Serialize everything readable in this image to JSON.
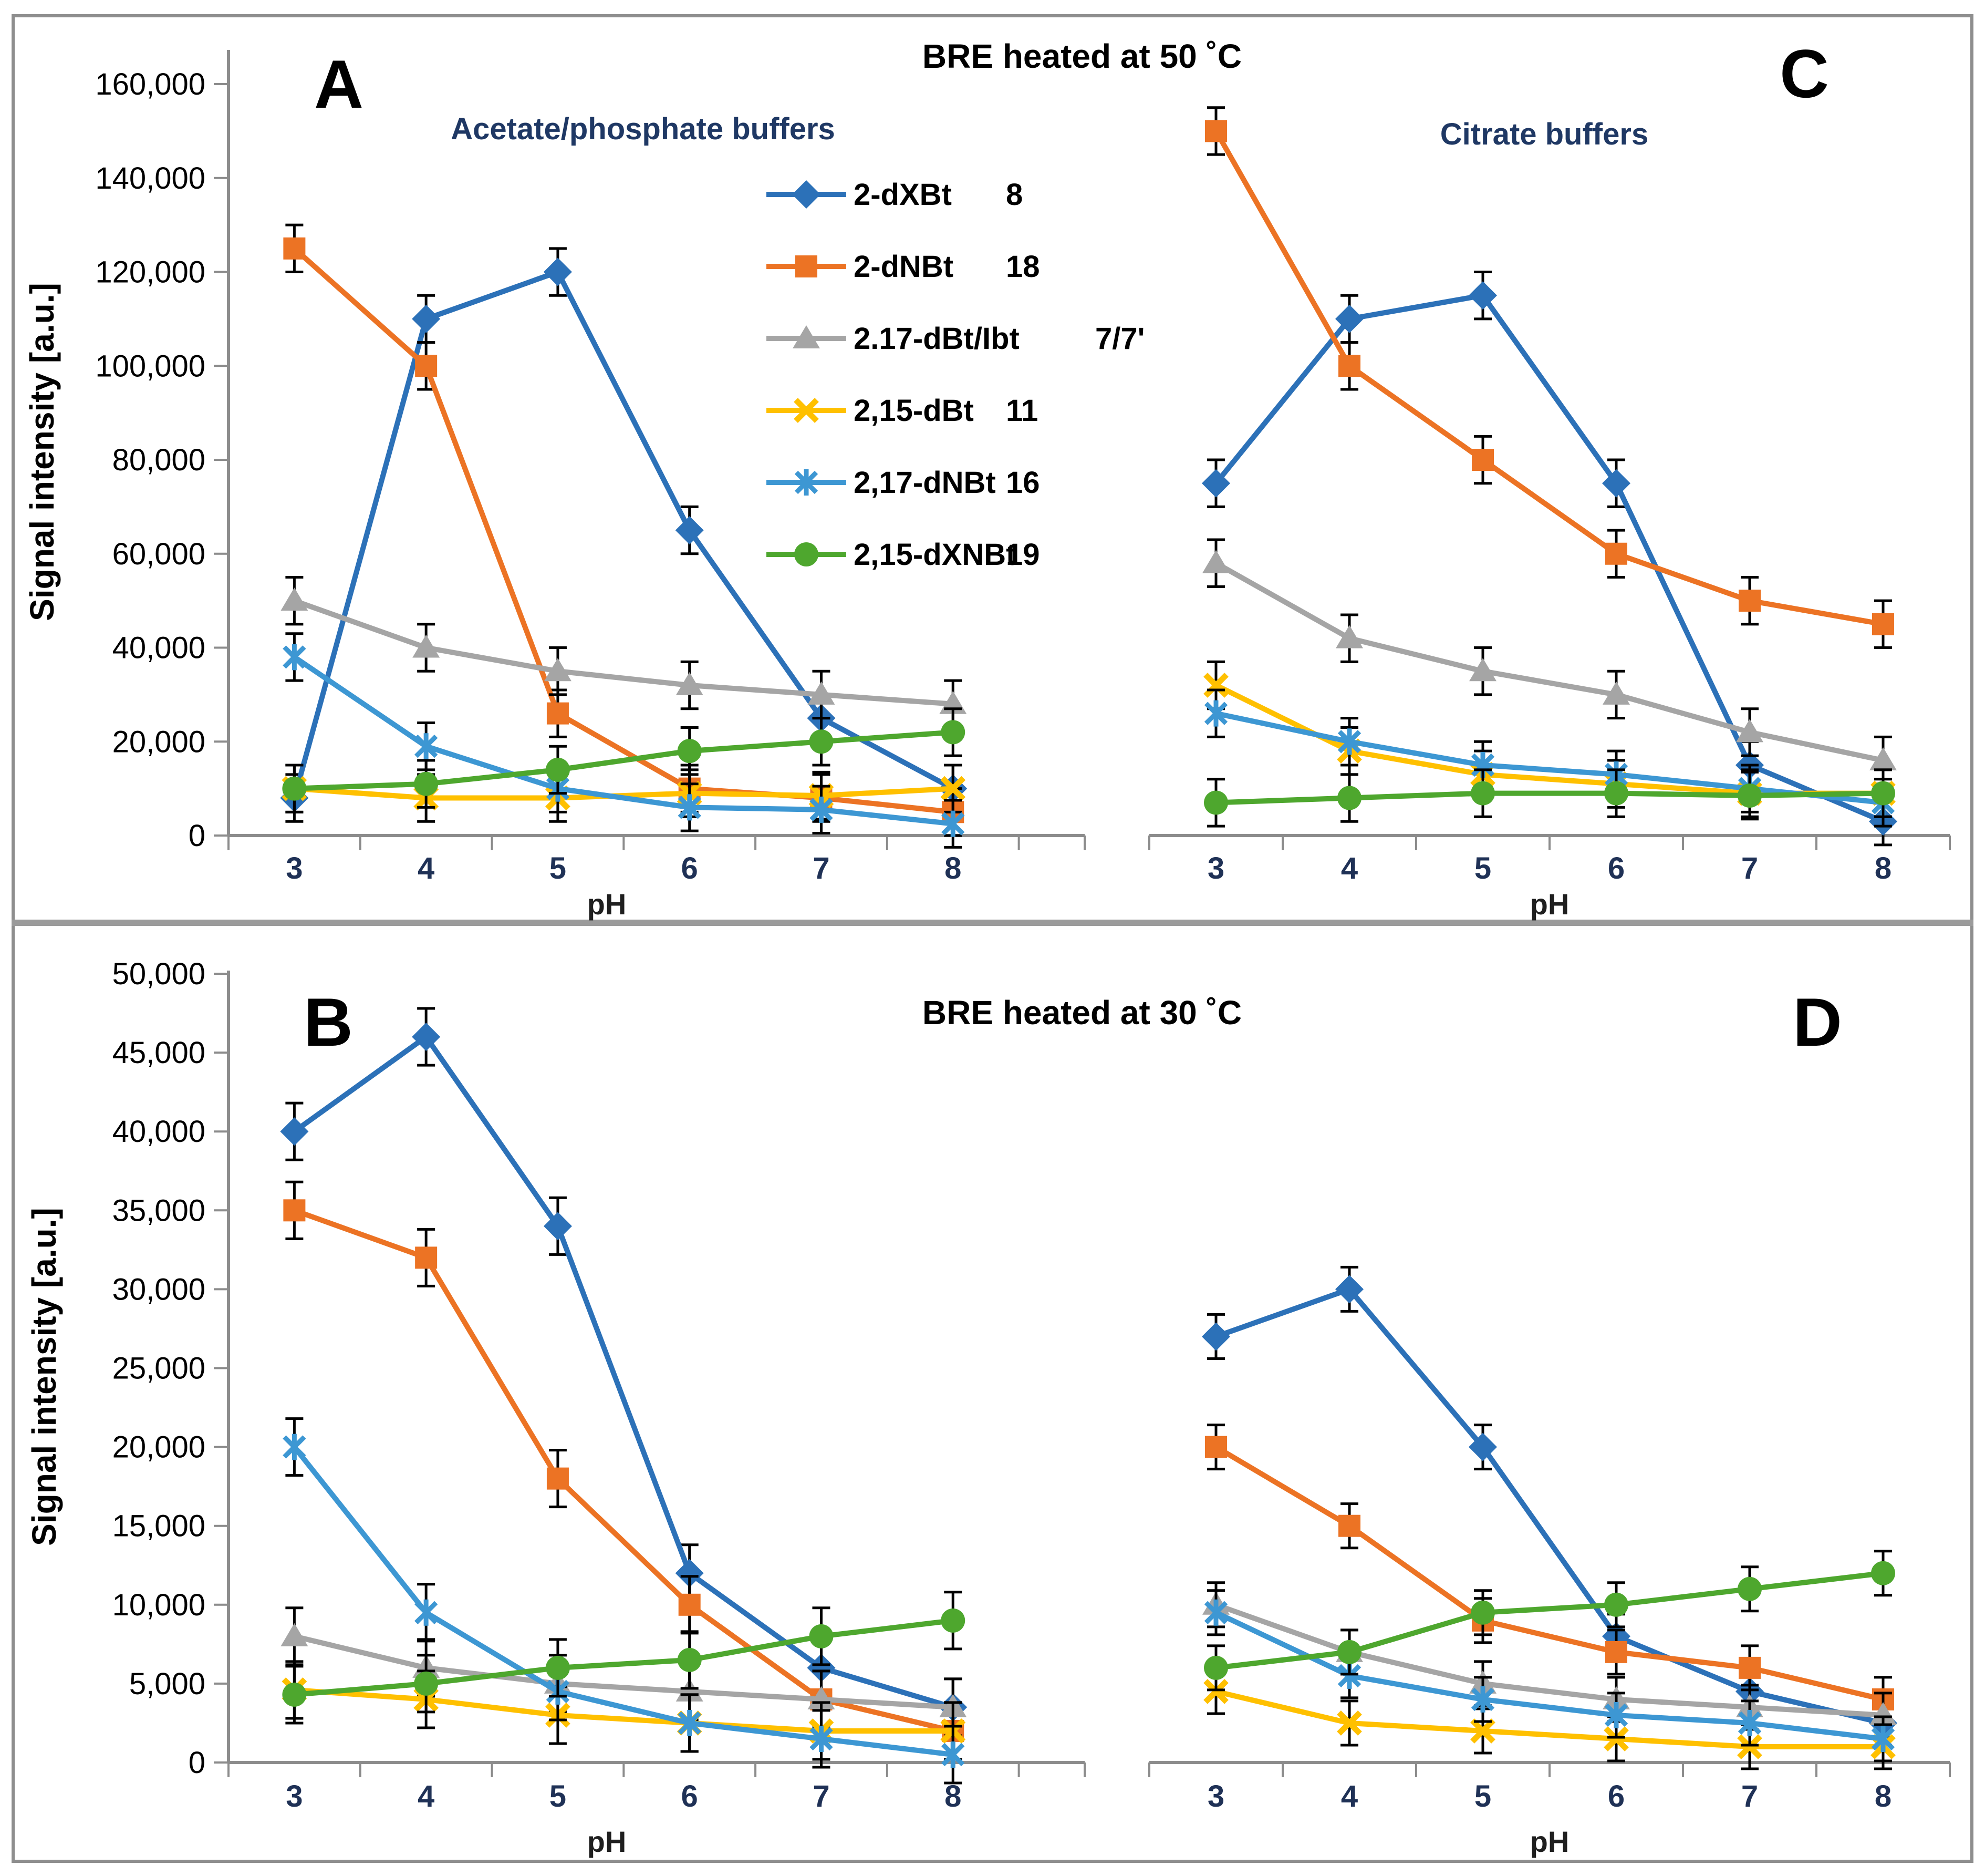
{
  "figure": {
    "sections": [
      {
        "title": "BRE heated at 50 ˚C",
        "ylabel": "Signal intensity [a.u.]"
      },
      {
        "title": "BRE heated at 30 ˚C",
        "ylabel": "Signal intensity [a.u.]"
      }
    ]
  },
  "legend": {
    "items": [
      {
        "name": "2-dXBt",
        "number": "8",
        "color": "#2C71B8",
        "marker": "diamond"
      },
      {
        "name": "2-dNBt",
        "number": "18",
        "color": "#EC7324",
        "marker": "square"
      },
      {
        "name": "2.17-dBt/Ibt",
        "number": "7/7'",
        "color": "#A5A5A5",
        "marker": "triangle"
      },
      {
        "name": "2,15-dBt",
        "number": "11",
        "color": "#FFC000",
        "marker": "x"
      },
      {
        "name": "2,17-dNBt",
        "number": "16",
        "color": "#3D97D3",
        "marker": "asterisk"
      },
      {
        "name": "2,15-dXNBt",
        "number": "19",
        "color": "#4EA72E",
        "marker": "circle"
      }
    ]
  },
  "chart_data": [
    {
      "type": "line",
      "panel": "A",
      "subtitle": "Acetate/phosphate buffers",
      "xlabel": "pH",
      "x_categories": [
        "3",
        "4",
        "5",
        "6",
        "7",
        "8"
      ],
      "ylim": [
        0,
        160000
      ],
      "y_tick_step": 20000,
      "y_ticks": [
        "0",
        "20,000",
        "40,000",
        "60,000",
        "80,000",
        "100,000",
        "120,000",
        "140,000",
        "160,000"
      ],
      "show_y_tick_labels": true,
      "error_bar": 5000,
      "series": [
        {
          "name": "2-dXBt",
          "values": [
            8000,
            110000,
            120000,
            65000,
            25000,
            10000
          ]
        },
        {
          "name": "2-dNBt",
          "values": [
            125000,
            100000,
            26000,
            10000,
            8000,
            5000
          ]
        },
        {
          "name": "2.17-dBt/Ibt",
          "values": [
            50000,
            40000,
            35000,
            32000,
            30000,
            28000
          ]
        },
        {
          "name": "2,15-dBt",
          "values": [
            10000,
            8000,
            8000,
            9000,
            8500,
            10000
          ]
        },
        {
          "name": "2,17-dNBt",
          "values": [
            38000,
            19000,
            10000,
            6000,
            5500,
            2500
          ]
        },
        {
          "name": "2,15-dXNBt",
          "values": [
            10000,
            11000,
            14000,
            18000,
            20000,
            22000
          ]
        }
      ]
    },
    {
      "type": "line",
      "panel": "C",
      "subtitle": "Citrate buffers",
      "xlabel": "pH",
      "x_categories": [
        "3",
        "4",
        "5",
        "6",
        "7",
        "8"
      ],
      "ylim": [
        0,
        160000
      ],
      "y_tick_step": 20000,
      "y_ticks": [
        "0",
        "20,000",
        "40,000",
        "60,000",
        "80,000",
        "100,000",
        "120,000",
        "140,000",
        "160,000"
      ],
      "show_y_tick_labels": false,
      "error_bar": 5000,
      "series": [
        {
          "name": "2-dXBt",
          "values": [
            75000,
            110000,
            115000,
            75000,
            15000,
            3000
          ]
        },
        {
          "name": "2-dNBt",
          "values": [
            150000,
            100000,
            80000,
            60000,
            50000,
            45000
          ]
        },
        {
          "name": "2.17-dBt/Ibt",
          "values": [
            58000,
            42000,
            35000,
            30000,
            22000,
            16000
          ]
        },
        {
          "name": "2,15-dBt",
          "values": [
            32000,
            18000,
            13000,
            11000,
            9000,
            9000
          ]
        },
        {
          "name": "2,17-dNBt",
          "values": [
            26000,
            20000,
            15000,
            13000,
            10000,
            7000
          ]
        },
        {
          "name": "2,15-dXNBt",
          "values": [
            7000,
            8000,
            9000,
            9000,
            8500,
            9000
          ]
        }
      ]
    },
    {
      "type": "line",
      "panel": "B",
      "subtitle": "",
      "xlabel": "pH",
      "x_categories": [
        "3",
        "4",
        "5",
        "6",
        "7",
        "8"
      ],
      "ylim": [
        0,
        50000
      ],
      "y_tick_step": 5000,
      "y_ticks": [
        "0",
        "5,000",
        "10,000",
        "15,000",
        "20,000",
        "25,000",
        "30,000",
        "35,000",
        "40,000",
        "45,000",
        "50,000"
      ],
      "show_y_tick_labels": true,
      "error_bar": 1800,
      "series": [
        {
          "name": "2-dXBt",
          "values": [
            40000,
            46000,
            34000,
            12000,
            6000,
            3500
          ]
        },
        {
          "name": "2-dNBt",
          "values": [
            35000,
            32000,
            18000,
            10000,
            4000,
            2000
          ]
        },
        {
          "name": "2.17-dBt/Ibt",
          "values": [
            8000,
            6000,
            5000,
            4500,
            4000,
            3500
          ]
        },
        {
          "name": "2,15-dBt",
          "values": [
            4600,
            4000,
            3000,
            2500,
            2000,
            2000
          ]
        },
        {
          "name": "2,17-dNBt",
          "values": [
            20000,
            9500,
            4500,
            2500,
            1500,
            500
          ]
        },
        {
          "name": "2,15-dXNBt",
          "values": [
            4300,
            5000,
            6000,
            6500,
            8000,
            9000
          ]
        }
      ]
    },
    {
      "type": "line",
      "panel": "D",
      "subtitle": "",
      "xlabel": "pH",
      "x_categories": [
        "3",
        "4",
        "5",
        "6",
        "7",
        "8"
      ],
      "ylim": [
        0,
        50000
      ],
      "y_tick_step": 5000,
      "y_ticks": [
        "0",
        "5,000",
        "10,000",
        "15,000",
        "20,000",
        "25,000",
        "30,000",
        "35,000",
        "40,000",
        "45,000",
        "50,000"
      ],
      "show_y_tick_labels": false,
      "error_bar": 1400,
      "series": [
        {
          "name": "2-dXBt",
          "values": [
            27000,
            30000,
            20000,
            8000,
            4500,
            2500
          ]
        },
        {
          "name": "2-dNBt",
          "values": [
            20000,
            15000,
            9000,
            7000,
            6000,
            4000
          ]
        },
        {
          "name": "2.17-dBt/Ibt",
          "values": [
            10000,
            7000,
            5000,
            4000,
            3500,
            3000
          ]
        },
        {
          "name": "2,15-dBt",
          "values": [
            4500,
            2500,
            2000,
            1500,
            1000,
            1000
          ]
        },
        {
          "name": "2,17-dNBt",
          "values": [
            9500,
            5500,
            4000,
            3000,
            2500,
            1500
          ]
        },
        {
          "name": "2,15-dXNBt",
          "values": [
            6000,
            7000,
            9500,
            10000,
            11000,
            12000
          ]
        }
      ]
    }
  ]
}
